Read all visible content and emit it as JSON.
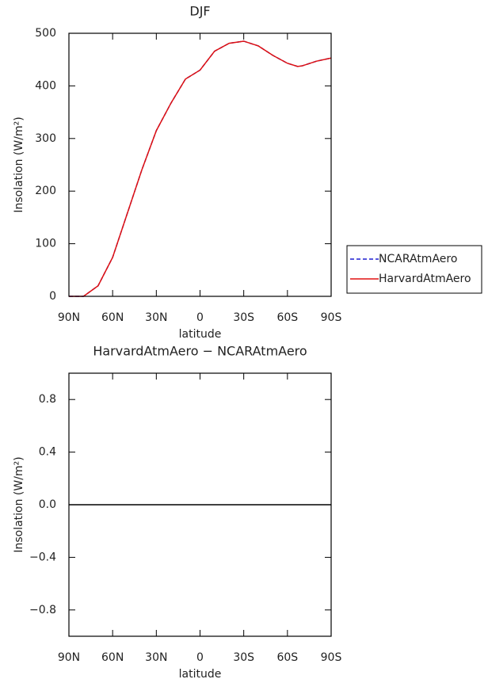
{
  "chart_data": [
    {
      "type": "line",
      "title": "DJF",
      "xlabel": "latitude",
      "ylabel": "Insolation (W/m²)",
      "x": [
        90,
        80,
        70,
        60,
        50,
        40,
        30,
        20,
        10,
        0,
        -10,
        -20,
        -30,
        -40,
        -50,
        -60,
        -67,
        -70,
        -80,
        -90
      ],
      "xlim": [
        90,
        -90
      ],
      "xticks": [
        {
          "value": 90,
          "label": "90N"
        },
        {
          "value": 60,
          "label": "60N"
        },
        {
          "value": 30,
          "label": "30N"
        },
        0,
        {
          "value": -30,
          "label": "30S"
        },
        {
          "value": -60,
          "label": "60S"
        },
        {
          "value": -90,
          "label": "90S"
        }
      ],
      "ylim": [
        0,
        500
      ],
      "yticks": [
        0,
        100,
        200,
        300,
        400,
        500
      ],
      "series": [
        {
          "name": "NCARAtmAero",
          "color": "#1f1fd0",
          "dash": true,
          "values": [
            0,
            0,
            20,
            74,
            157,
            240,
            315,
            367,
            413,
            430,
            466,
            481,
            485,
            476,
            458,
            443,
            437,
            438,
            447,
            453
          ]
        },
        {
          "name": "HarvardAtmAero",
          "color": "#e01010",
          "dash": false,
          "values": [
            0,
            0,
            20,
            74,
            157,
            240,
            315,
            367,
            413,
            430,
            466,
            481,
            485,
            476,
            458,
            443,
            437,
            438,
            447,
            453
          ]
        }
      ],
      "legend": "outside-right"
    },
    {
      "type": "line",
      "title": "HarvardAtmAero − NCARAtmAero",
      "xlabel": "latitude",
      "ylabel": "Insolation (W/m²)",
      "x": [
        90,
        -90
      ],
      "xlim": [
        90,
        -90
      ],
      "xticks": [
        {
          "value": 90,
          "label": "90N"
        },
        {
          "value": 60,
          "label": "60N"
        },
        {
          "value": 30,
          "label": "30N"
        },
        0,
        {
          "value": -30,
          "label": "30S"
        },
        {
          "value": -60,
          "label": "60S"
        },
        {
          "value": -90,
          "label": "90S"
        }
      ],
      "ylim": [
        -1,
        1
      ],
      "yticks": [
        {
          "value": -0.8,
          "label": "−0.8"
        },
        {
          "value": -0.4,
          "label": "−0.4"
        },
        {
          "value": 0,
          "label": "0.0"
        },
        0.4,
        0.8
      ],
      "series": [
        {
          "color": "#000000",
          "dash": false,
          "values": [
            0,
            0
          ]
        }
      ]
    }
  ]
}
